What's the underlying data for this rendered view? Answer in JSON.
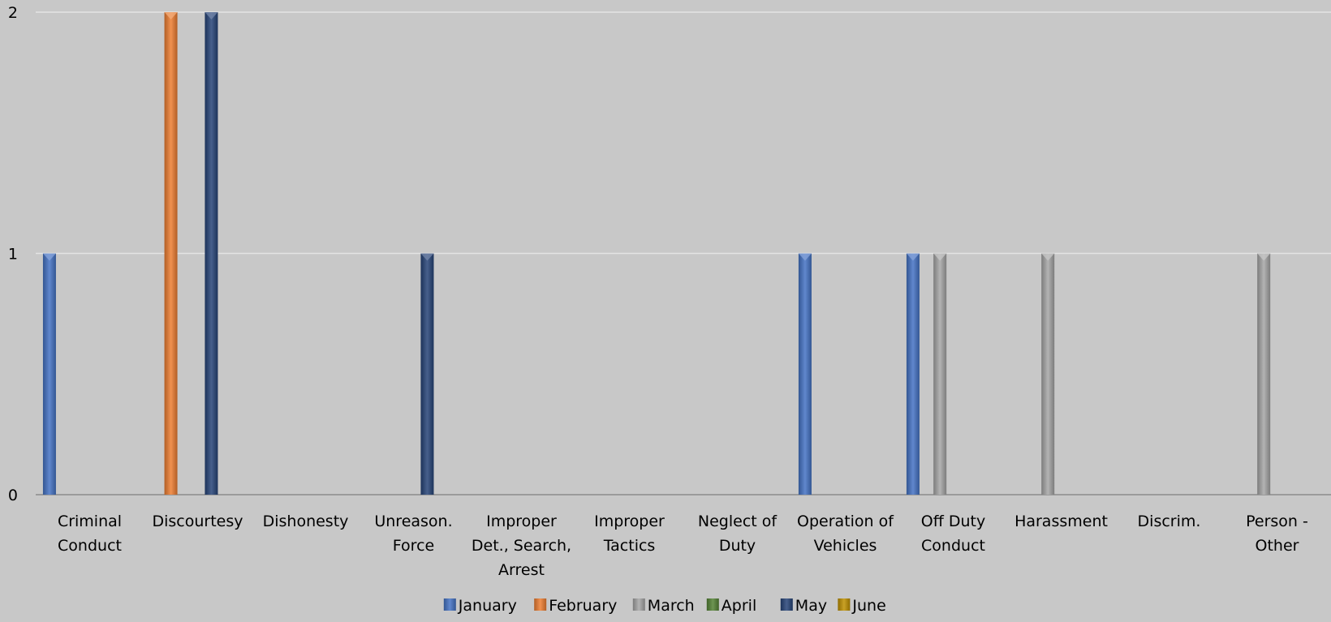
{
  "chart_data": {
    "type": "bar",
    "title": "",
    "xlabel": "",
    "ylabel": "",
    "ylim": [
      0,
      2
    ],
    "yticks": [
      0,
      1,
      2
    ],
    "grid": true,
    "legend_position": "bottom",
    "categories": [
      [
        "Criminal",
        "Conduct"
      ],
      [
        "Discourtesy"
      ],
      [
        "Dishonesty"
      ],
      [
        "Unreason.",
        "Force"
      ],
      [
        "Improper",
        "Det., Search,",
        "Arrest"
      ],
      [
        "Improper",
        "Tactics"
      ],
      [
        "Neglect of",
        "Duty"
      ],
      [
        "Operation of",
        "Vehicles"
      ],
      [
        "Off Duty",
        "Conduct"
      ],
      [
        "Harassment"
      ],
      [
        "Discrim."
      ],
      [
        "Person -",
        "Other"
      ]
    ],
    "series": [
      {
        "name": "January",
        "color": "#4472c4",
        "values": [
          1,
          0,
          0,
          0,
          0,
          0,
          0,
          1,
          1,
          0,
          0,
          0
        ]
      },
      {
        "name": "February",
        "color": "#ed7d31",
        "values": [
          0,
          2,
          0,
          0,
          0,
          0,
          0,
          0,
          0,
          0,
          0,
          0
        ]
      },
      {
        "name": "March",
        "color": "#a5a5a5",
        "values": [
          0,
          0,
          0,
          0,
          0,
          0,
          0,
          0,
          1,
          1,
          0,
          1
        ]
      },
      {
        "name": "April",
        "color": "#548235",
        "values": [
          0,
          0,
          0,
          0,
          0,
          0,
          0,
          0,
          0,
          0,
          0,
          0
        ]
      },
      {
        "name": "May",
        "color": "#264478",
        "values": [
          0,
          2,
          0,
          1,
          0,
          0,
          0,
          0,
          0,
          0,
          0,
          0
        ]
      },
      {
        "name": "June",
        "color": "#bf9000",
        "values": [
          0,
          0,
          0,
          0,
          0,
          0,
          0,
          0,
          0,
          0,
          0,
          0
        ]
      }
    ]
  }
}
